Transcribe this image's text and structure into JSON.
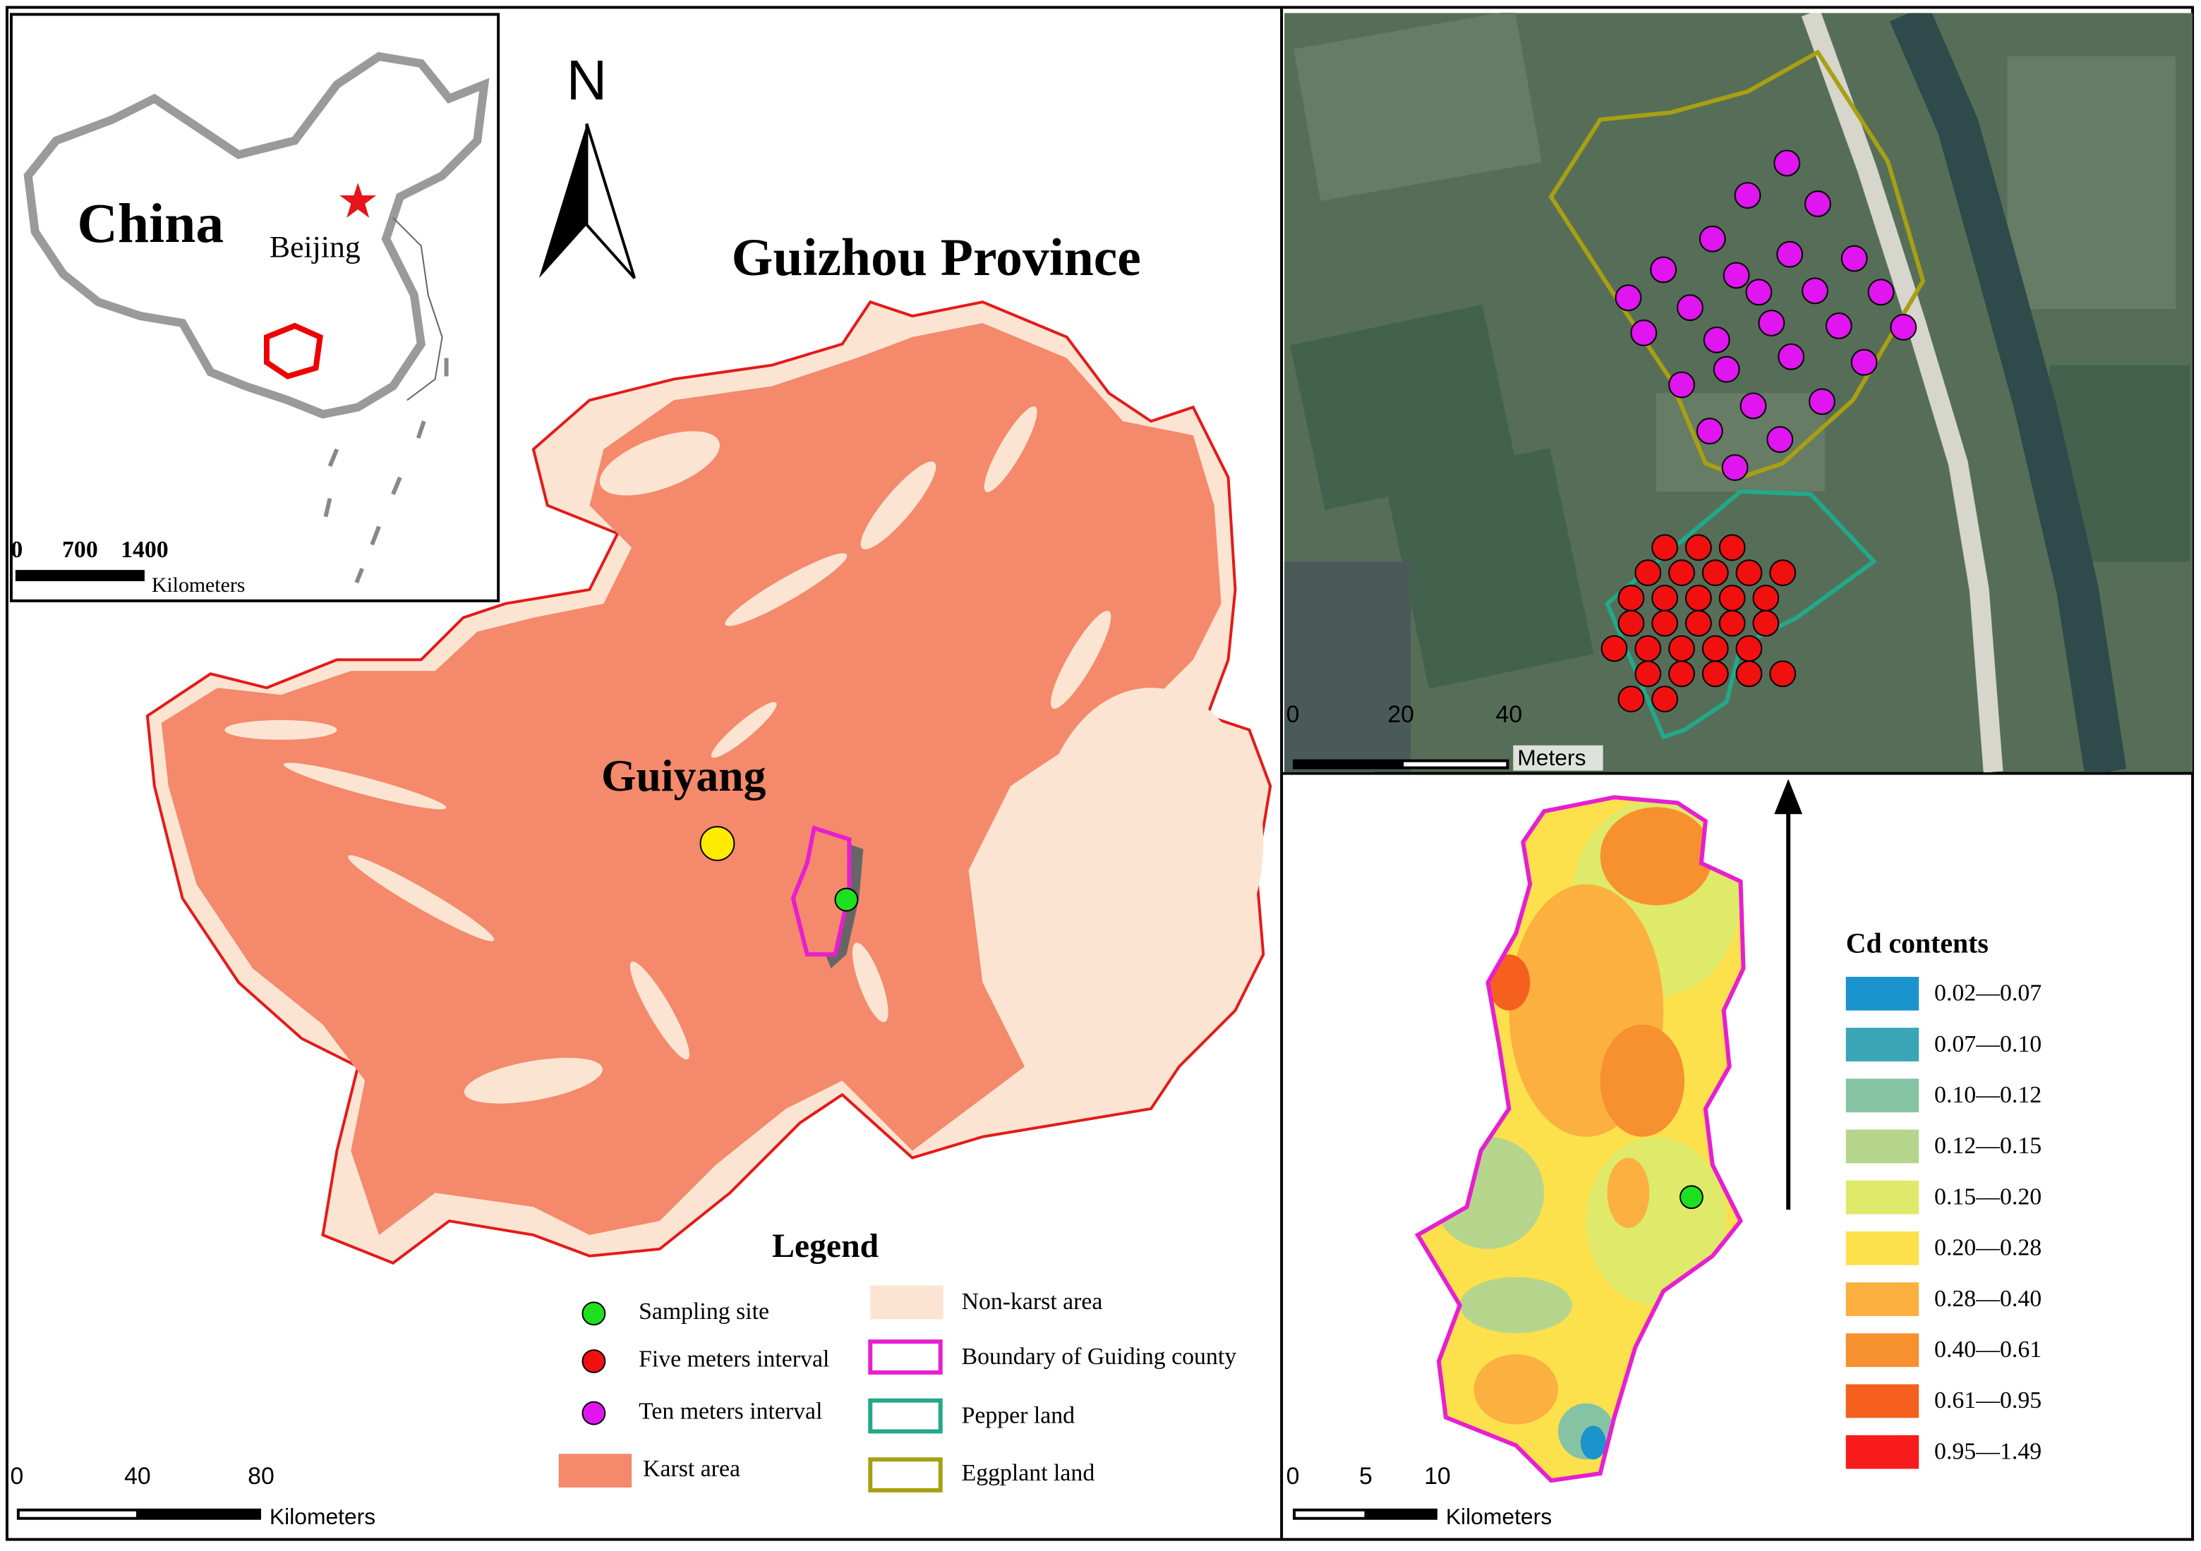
{
  "inset": {
    "title": "China",
    "capital": "Beijing",
    "scale": {
      "ticks": [
        "0",
        "700",
        "1400"
      ],
      "unit": "Kilometers"
    }
  },
  "main": {
    "north": "N",
    "title": "Guizhou Province",
    "city": "Guiyang",
    "scale": {
      "ticks": [
        "0",
        "40",
        "80"
      ],
      "unit": "Kilometers"
    }
  },
  "legend": {
    "title": "Legend",
    "items": [
      "Sampling site",
      "Five meters interval",
      "Ten meters interval",
      "Karst area",
      "Non-karst area",
      "Boundary of Guiding county",
      "Pepper  land",
      "Eggplant land"
    ]
  },
  "satellite": {
    "scale": {
      "ticks": [
        "0",
        "20",
        "40"
      ],
      "unit": "Meters"
    }
  },
  "county": {
    "scale": {
      "ticks": [
        "0",
        "5",
        "10"
      ],
      "unit": "Kilometers"
    },
    "cd_legend": {
      "title": "Cd contents",
      "classes": [
        {
          "label": "0.02—0.07",
          "color": "#1b93cc"
        },
        {
          "label": "0.07—0.10",
          "color": "#3aa5b6"
        },
        {
          "label": "0.10—0.12",
          "color": "#86c2a4"
        },
        {
          "label": "0.12—0.15",
          "color": "#b6d58c"
        },
        {
          "label": "0.15—0.20",
          "color": "#dfe96a"
        },
        {
          "label": "0.20—0.28",
          "color": "#fde14c"
        },
        {
          "label": "0.28—0.40",
          "color": "#fbb040"
        },
        {
          "label": "0.40—0.61",
          "color": "#f7902f"
        },
        {
          "label": "0.61—0.95",
          "color": "#f5601e"
        },
        {
          "label": "0.95—1.49",
          "color": "#f71b1b"
        }
      ]
    }
  }
}
